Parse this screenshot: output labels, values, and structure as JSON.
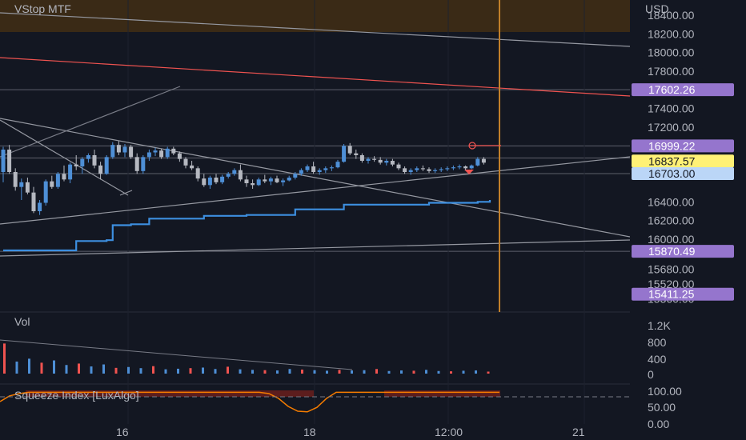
{
  "indicator_main": "VStop MTF",
  "indicator_vol": "Vol",
  "indicator_squeeze": "Squeeze Index [LuxAlgo]",
  "currency": "USD",
  "colors": {
    "background": "#131722",
    "up": "#4e8fd6",
    "down": "#b5b8c0",
    "vstop": "#3d8fe0",
    "resistance": "#f05350",
    "purple_tag": "#9575cd",
    "yellow_tag": "#fff176",
    "light_tag": "#bbd6f7",
    "orange_line": "#c17f2a",
    "zone": "#3a2a16"
  },
  "chart_data": {
    "type": "candlestick",
    "y_axis": {
      "unit": "USD",
      "ticks": [
        "18400.00",
        "18200.00",
        "18000.00",
        "17800.00",
        "17400.00",
        "17200.00",
        "16400.00",
        "16200.00",
        "16000.00",
        "15680.00",
        "15520.00",
        "15360.00"
      ]
    },
    "x_axis": {
      "ticks": [
        "16",
        "18",
        "12:00",
        "21"
      ]
    },
    "price_tags": [
      {
        "value": "17602.26",
        "style": "purple"
      },
      {
        "value": "16999.22",
        "style": "purple"
      },
      {
        "value": "16837.57",
        "style": "yellow"
      },
      {
        "value": "16703.00",
        "style": "light"
      },
      {
        "value": "15870.49",
        "style": "purple"
      },
      {
        "value": "15411.25",
        "style": "purple"
      }
    ],
    "candles": [
      [
        16720,
        16990,
        16610,
        16960
      ],
      [
        16960,
        17010,
        16700,
        16720
      ],
      [
        16720,
        16760,
        16520,
        16560
      ],
      [
        16560,
        16650,
        16420,
        16610
      ],
      [
        16610,
        16660,
        16480,
        16500
      ],
      [
        16500,
        16560,
        16280,
        16300
      ],
      [
        16300,
        16420,
        16260,
        16390
      ],
      [
        16390,
        16640,
        16360,
        16620
      ],
      [
        16620,
        16680,
        16540,
        16560
      ],
      [
        16560,
        16720,
        16540,
        16700
      ],
      [
        16700,
        16790,
        16620,
        16640
      ],
      [
        16640,
        16820,
        16600,
        16800
      ],
      [
        16800,
        16900,
        16740,
        16780
      ],
      [
        16780,
        16880,
        16700,
        16860
      ],
      [
        16860,
        16920,
        16820,
        16900
      ],
      [
        16900,
        16960,
        16760,
        16790
      ],
      [
        16790,
        16830,
        16640,
        16700
      ],
      [
        16700,
        16900,
        16690,
        16880
      ],
      [
        16880,
        17040,
        16860,
        17010
      ],
      [
        17010,
        17050,
        16900,
        16930
      ],
      [
        16930,
        17020,
        16880,
        16990
      ],
      [
        16990,
        17010,
        16860,
        16880
      ],
      [
        16880,
        16920,
        16700,
        16730
      ],
      [
        16730,
        16900,
        16700,
        16880
      ],
      [
        16880,
        16960,
        16840,
        16930
      ],
      [
        16930,
        16980,
        16890,
        16950
      ],
      [
        16950,
        16970,
        16860,
        16880
      ],
      [
        16880,
        16990,
        16860,
        16970
      ],
      [
        16970,
        16990,
        16900,
        16920
      ],
      [
        16920,
        16940,
        16830,
        16860
      ],
      [
        16860,
        16880,
        16760,
        16790
      ],
      [
        16790,
        16840,
        16740,
        16760
      ],
      [
        16760,
        16780,
        16620,
        16650
      ],
      [
        16650,
        16700,
        16560,
        16580
      ],
      [
        16580,
        16680,
        16540,
        16660
      ],
      [
        16660,
        16700,
        16590,
        16610
      ],
      [
        16610,
        16690,
        16590,
        16670
      ],
      [
        16670,
        16720,
        16650,
        16700
      ],
      [
        16700,
        16760,
        16680,
        16740
      ],
      [
        16740,
        16800,
        16620,
        16640
      ],
      [
        16640,
        16680,
        16560,
        16600
      ],
      [
        16600,
        16640,
        16540,
        16580
      ],
      [
        16580,
        16660,
        16570,
        16640
      ],
      [
        16640,
        16690,
        16600,
        16620
      ],
      [
        16620,
        16670,
        16580,
        16650
      ],
      [
        16650,
        16680,
        16600,
        16610
      ],
      [
        16610,
        16650,
        16570,
        16630
      ],
      [
        16630,
        16680,
        16620,
        16660
      ],
      [
        16660,
        16720,
        16640,
        16700
      ],
      [
        16700,
        16760,
        16680,
        16740
      ],
      [
        16740,
        16800,
        16720,
        16780
      ],
      [
        16780,
        16830,
        16700,
        16720
      ],
      [
        16720,
        16760,
        16690,
        16740
      ],
      [
        16740,
        16780,
        16710,
        16760
      ],
      [
        16760,
        16790,
        16730,
        16770
      ],
      [
        16770,
        16850,
        16760,
        16830
      ],
      [
        16830,
        17020,
        16820,
        17000
      ],
      [
        17000,
        17030,
        16900,
        16920
      ],
      [
        16920,
        16960,
        16860,
        16900
      ],
      [
        16900,
        16920,
        16820,
        16840
      ],
      [
        16840,
        16880,
        16810,
        16860
      ],
      [
        16860,
        16890,
        16830,
        16850
      ],
      [
        16850,
        16880,
        16800,
        16820
      ],
      [
        16820,
        16860,
        16790,
        16840
      ],
      [
        16840,
        16860,
        16780,
        16800
      ],
      [
        16800,
        16820,
        16740,
        16760
      ],
      [
        16760,
        16780,
        16700,
        16720
      ],
      [
        16720,
        16760,
        16690,
        16740
      ],
      [
        16740,
        16780,
        16720,
        16760
      ],
      [
        16760,
        16790,
        16730,
        16750
      ],
      [
        16750,
        16770,
        16710,
        16730
      ],
      [
        16730,
        16760,
        16710,
        16740
      ],
      [
        16740,
        16770,
        16720,
        16750
      ],
      [
        16750,
        16780,
        16730,
        16760
      ],
      [
        16760,
        16790,
        16740,
        16770
      ],
      [
        16770,
        16800,
        16750,
        16780
      ],
      [
        16780,
        16790,
        16740,
        16760
      ],
      [
        16760,
        16800,
        16750,
        16790
      ],
      [
        16790,
        16880,
        16780,
        16860
      ],
      [
        16860,
        16880,
        16800,
        16820
      ]
    ],
    "vstop": [
      [
        0,
        15880
      ],
      [
        11,
        15880
      ],
      [
        12,
        15980
      ],
      [
        17,
        15990
      ],
      [
        18,
        16150
      ],
      [
        21,
        16160
      ],
      [
        24,
        16220
      ],
      [
        33,
        16250
      ],
      [
        40,
        16260
      ],
      [
        48,
        16320
      ],
      [
        56,
        16370
      ],
      [
        70,
        16390
      ],
      [
        78,
        16400
      ],
      [
        80,
        16420
      ]
    ],
    "volume": [
      1050,
      420,
      520,
      380,
      460,
      300,
      350,
      250,
      320,
      200,
      230,
      190,
      260,
      150,
      170,
      190,
      210,
      160,
      240,
      150,
      130,
      120,
      110,
      160,
      140,
      120,
      100,
      130,
      110,
      120,
      160,
      90,
      110,
      100,
      130,
      90,
      80,
      100,
      110,
      70
    ],
    "squeeze": [
      70,
      88,
      95,
      99,
      99,
      99,
      99,
      99,
      99,
      99,
      99,
      99,
      99,
      99,
      99,
      99,
      99,
      99,
      99,
      99,
      99,
      99,
      99,
      99,
      99,
      99,
      99,
      99,
      95,
      80,
      55,
      40,
      38,
      52,
      80,
      99,
      99,
      99,
      99,
      99,
      99,
      99,
      99,
      99,
      99,
      99,
      99,
      99,
      99,
      99,
      99,
      99,
      99
    ],
    "volume_ticks": [
      "1.2K",
      "800",
      "400",
      "0"
    ],
    "squeeze_ticks": [
      "100.00",
      "50.00",
      "0.00"
    ]
  }
}
